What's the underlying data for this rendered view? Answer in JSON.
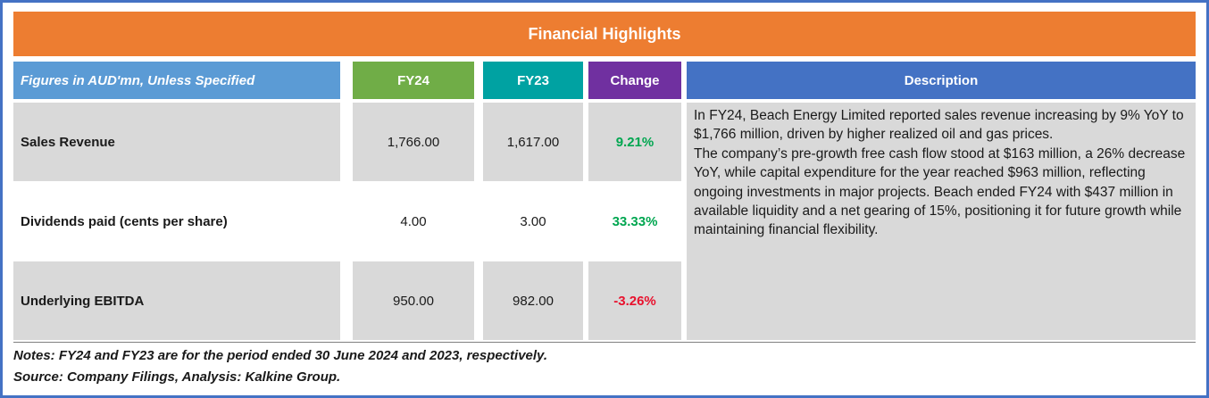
{
  "title": "Financial Highlights",
  "header": {
    "figures_label": "Figures in AUD'mn, Unless Specified",
    "col_fy24": "FY24",
    "col_fy23": "FY23",
    "col_change": "Change",
    "col_description": "Description"
  },
  "rows": [
    {
      "label": "Sales Revenue",
      "fy24": "1,766.00",
      "fy23": "1,617.00",
      "change": "9.21%",
      "change_color": "#00A650"
    },
    {
      "label": "Dividends paid (cents per share)",
      "fy24": "4.00",
      "fy23": "3.00",
      "change": "33.33%",
      "change_color": "#00A650"
    },
    {
      "label": "Underlying EBITDA",
      "fy24": "950.00",
      "fy23": "982.00",
      "change": "-3.26%",
      "change_color": "#E8112D"
    }
  ],
  "description": {
    "para1": "In FY24, Beach Energy Limited reported sales revenue increasing by 9% YoY to $1,766 million, driven by higher realized oil and gas prices.",
    "para2": "The company’s pre-growth free cash flow stood at $163 million, a 26% decrease YoY, while capital expenditure for the year reached $963 million, reflecting ongoing investments in major projects. Beach ended FY24 with $437 million in available liquidity and a net gearing of 15%, positioning it for future growth while maintaining financial flexibility."
  },
  "footer": {
    "notes": "Notes: FY24 and FY23 are for the period ended 30 June 2024 and 2023, respectively.",
    "source": "Source: Company Filings, Analysis: Kalkine Group."
  },
  "colors": {
    "banner": "#ED7D31",
    "figures_header": "#5B9BD5",
    "fy24_header": "#70AD47",
    "fy23_header": "#00A2A2",
    "change_header": "#7030A0",
    "description_header": "#4472C4",
    "row_band": "#D9D9D9",
    "positive": "#00A650",
    "negative": "#E8112D",
    "border": "#4472C4"
  }
}
